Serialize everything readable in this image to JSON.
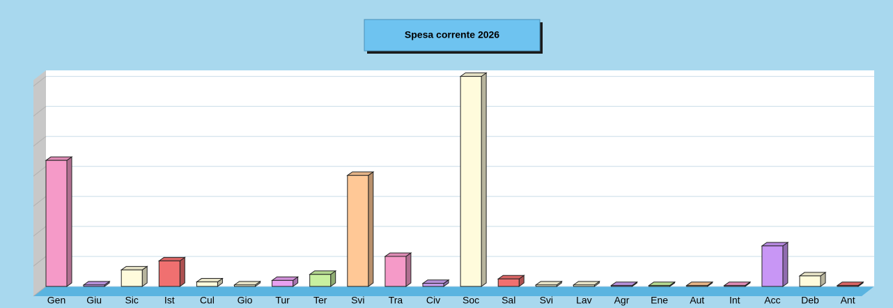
{
  "chart_data": {
    "type": "bar3d",
    "title": "Spesa corrente 2026",
    "categories": [
      "Gen",
      "Giu",
      "Sic",
      "Ist",
      "Cul",
      "Gio",
      "Tur",
      "Ter",
      "Svi",
      "Tra",
      "Civ",
      "Soc",
      "Sal",
      "Svi",
      "Lav",
      "Agr",
      "Ene",
      "Aut",
      "Int",
      "Acc",
      "Deb",
      "Ant"
    ],
    "values": [
      4.2,
      0.05,
      0.55,
      0.85,
      0.15,
      0.05,
      0.2,
      0.4,
      3.7,
      1.0,
      0.1,
      7.0,
      0.25,
      0.05,
      0.05,
      0.03,
      0.03,
      0.03,
      0.03,
      1.35,
      0.35,
      0.03
    ],
    "colors": [
      "#f59ac8",
      "#c9a0f0",
      "#fffbdc",
      "#f07070",
      "#fffbdc",
      "#fffbdc",
      "#e7a0f0",
      "#c8f0a0",
      "#ffc896",
      "#f59ac8",
      "#c9a0f0",
      "#fffbdc",
      "#f07070",
      "#fffbdc",
      "#fffbdc",
      "#c9a0f0",
      "#c8f0a0",
      "#ffc896",
      "#f59ac8",
      "#c896f5",
      "#fffbdc",
      "#f07070"
    ],
    "ylim": [
      0,
      7.2
    ],
    "yticks": [
      0,
      1,
      2,
      3,
      4,
      5,
      6,
      7
    ],
    "grid": true
  }
}
